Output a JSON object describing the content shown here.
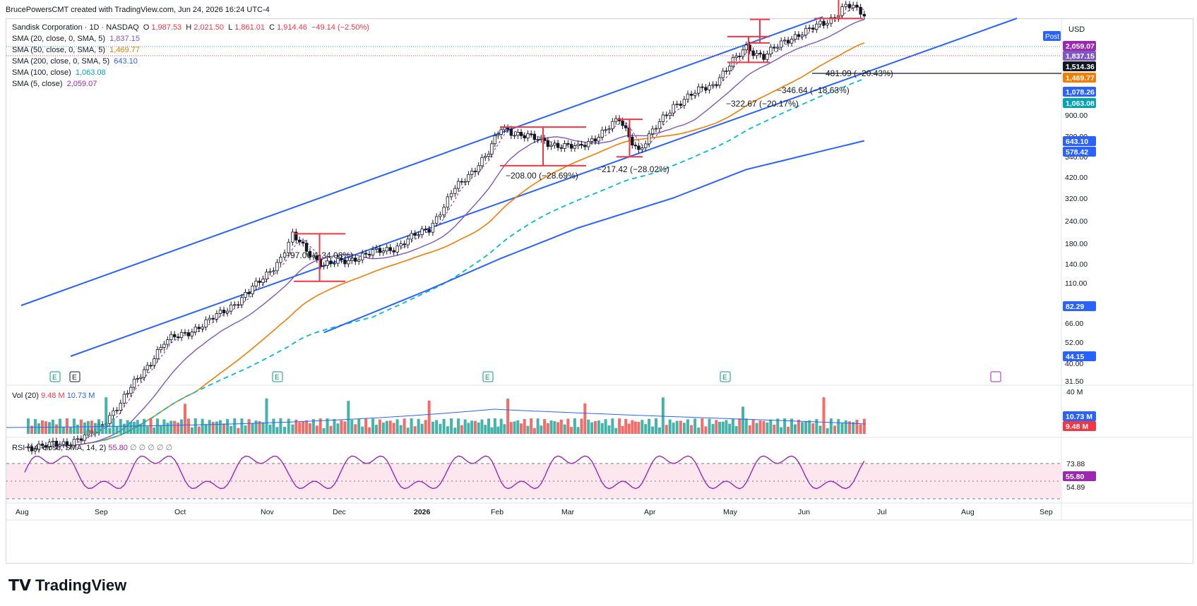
{
  "header": {
    "text": "BrucePowersCMT created with TradingView.com, Jun 24, 2026 16:24 UTC-4"
  },
  "logo": {
    "text": "TradingView"
  },
  "legend": {
    "symbol": "Sandisk Corporation · 1D · NASDAQ",
    "ohlc": {
      "o_label": "O",
      "o": "1,987.53",
      "h_label": "H",
      "h": "2,021.50",
      "l_label": "L",
      "l": "1,861.01",
      "c_label": "C",
      "c": "1,914.46",
      "chg": "−49.14 (−2.50%)"
    },
    "smas": [
      {
        "label": "SMA (20, close, 0, SMA, 5)",
        "value": "1,837.15",
        "color": "#7e57c2"
      },
      {
        "label": "SMA (50, close, 0, SMA, 5)",
        "value": "1,469.77",
        "color": "#f57c00"
      },
      {
        "label": "SMA (200, close, 0, SMA, 5)",
        "value": "643.10",
        "color": "#2962ff"
      },
      {
        "label": "SMA (100, close)",
        "value": "1,063.08",
        "color": "#00bcd4"
      },
      {
        "label": "SMA (5, close)",
        "value": "2,059.07",
        "color": "#9c27b0"
      }
    ]
  },
  "vol_legend": {
    "label": "Vol (20)",
    "v1": "9.48 M",
    "v2": "10.73 M"
  },
  "rsi_legend": {
    "label": "RSI (14, close, SMA, 14, 2)",
    "v1": "55.80",
    "v2": "∅ ∅ ∅ ∅ ∅"
  },
  "price_axis": {
    "currency": "USD",
    "post": "Post",
    "ticks": [
      "900.00",
      "700.00",
      "540.00",
      "420.00",
      "320.00",
      "240.00",
      "180.00",
      "140.00",
      "110.00",
      "66.00",
      "52.00",
      "40.00",
      "31.50"
    ],
    "badges": [
      {
        "text": "2,059.07",
        "bg": "#9c27b0"
      },
      {
        "text": "1,837.15",
        "bg": "#7e57c2"
      },
      {
        "text": "1,514.36",
        "bg": "#131722"
      },
      {
        "text": "1,469.77",
        "bg": "#f57c00"
      },
      {
        "text": "1,078.26",
        "bg": "#2962ff"
      },
      {
        "text": "1,063.08",
        "bg": "#00a5b5"
      },
      {
        "text": "643.10",
        "bg": "#2962ff"
      },
      {
        "text": "578.42",
        "bg": "#2962ff"
      },
      {
        "text": "82.29",
        "bg": "#2962ff"
      },
      {
        "text": "44.15",
        "bg": "#2962ff"
      }
    ]
  },
  "vol_axis": {
    "top": "40 M",
    "badges": [
      {
        "text": "10.73 M",
        "bg": "#2962ff"
      },
      {
        "text": "9.48 M",
        "bg": "#f23645"
      }
    ]
  },
  "rsi_axis": {
    "ticks": [
      "73.88",
      "54.89"
    ],
    "badge": {
      "text": "55.80",
      "bg": "#9c27b0"
    }
  },
  "time_axis": [
    "Aug",
    "Sep",
    "Oct",
    "Nov",
    "Dec",
    "2026",
    "Feb",
    "Mar",
    "Apr",
    "May",
    "Jun",
    "Jul",
    "Aug",
    "Sep"
  ],
  "event_markers": [
    "E",
    "E",
    "E",
    "E",
    "E"
  ],
  "annotations": [
    "−97.06 (−34.08%)",
    "−208.00 (−28.69%)",
    "−217.42 (−28.02%)",
    "−322.67 (−20.17%)",
    "−346.64 (−18.63%)",
    "−481.09 (−20.43%)"
  ],
  "chart_data": {
    "type": "line",
    "title": "Sandisk Corporation · 1D · NASDAQ",
    "y_scale": "log",
    "ylim": [
      31.5,
      2600
    ],
    "x_range": [
      "Aug 2025",
      "Sep 2026"
    ],
    "series": [
      {
        "name": "Price (approx. closes)",
        "points": [
          [
            "Aug 1",
            44
          ],
          [
            "Aug 15",
            45
          ],
          [
            "Aug 29",
            50
          ],
          [
            "Sep 10",
            68
          ],
          [
            "Sep 25",
            110
          ],
          [
            "Oct 10",
            130
          ],
          [
            "Oct 25",
            170
          ],
          [
            "Nov 7",
            230
          ],
          [
            "Nov 12",
            280
          ],
          [
            "Nov 25",
            215
          ],
          [
            "Dec 10",
            235
          ],
          [
            "Dec 23",
            255
          ],
          [
            "Jan 5",
            300
          ],
          [
            "Jan 15",
            420
          ],
          [
            "Jan 28",
            580
          ],
          [
            "Feb 3",
            720
          ],
          [
            "Feb 20",
            640
          ],
          [
            "Mar 5",
            600
          ],
          [
            "Mar 20",
            770
          ],
          [
            "Mar 27",
            590
          ],
          [
            "Apr 10",
            880
          ],
          [
            "Apr 25",
            1060
          ],
          [
            "May 8",
            1450
          ],
          [
            "May 15",
            1350
          ],
          [
            "May 29",
            1650
          ],
          [
            "Jun 10",
            1800
          ],
          [
            "Jun 17",
            2140
          ],
          [
            "Jun 24",
            1914.46
          ]
        ]
      },
      {
        "name": "SMA (5, close)",
        "last": 2059.07
      },
      {
        "name": "SMA (20)",
        "last": 1837.15
      },
      {
        "name": "SMA (50)",
        "last": 1469.77
      },
      {
        "name": "SMA (100)",
        "last": 1063.08
      },
      {
        "name": "SMA (200)",
        "last": 643.1
      }
    ],
    "drawdowns": [
      {
        "label": "−97.06 (−34.08%)",
        "from": 285,
        "to": 188
      },
      {
        "label": "−208.00 (−28.69%)",
        "from": 725,
        "to": 517
      },
      {
        "label": "−217.42 (−28.02%)",
        "from": 776,
        "to": 559
      },
      {
        "label": "−322.67 (−20.17%)",
        "from": 1600,
        "to": 1277
      },
      {
        "label": "−346.64 (−18.63%)",
        "from": 1860,
        "to": 1514
      },
      {
        "label": "−481.09 (−20.43%)",
        "from": 2355,
        "to": 1874
      }
    ],
    "volume": {
      "label": "Vol (20)",
      "last": "9.48 M",
      "avg": "10.73 M",
      "ymax": "40 M"
    },
    "rsi": {
      "label": "RSI (14, close, SMA, 14, 2)",
      "last": 55.8,
      "levels": [
        73.88,
        54.89
      ]
    },
    "grid": false
  }
}
